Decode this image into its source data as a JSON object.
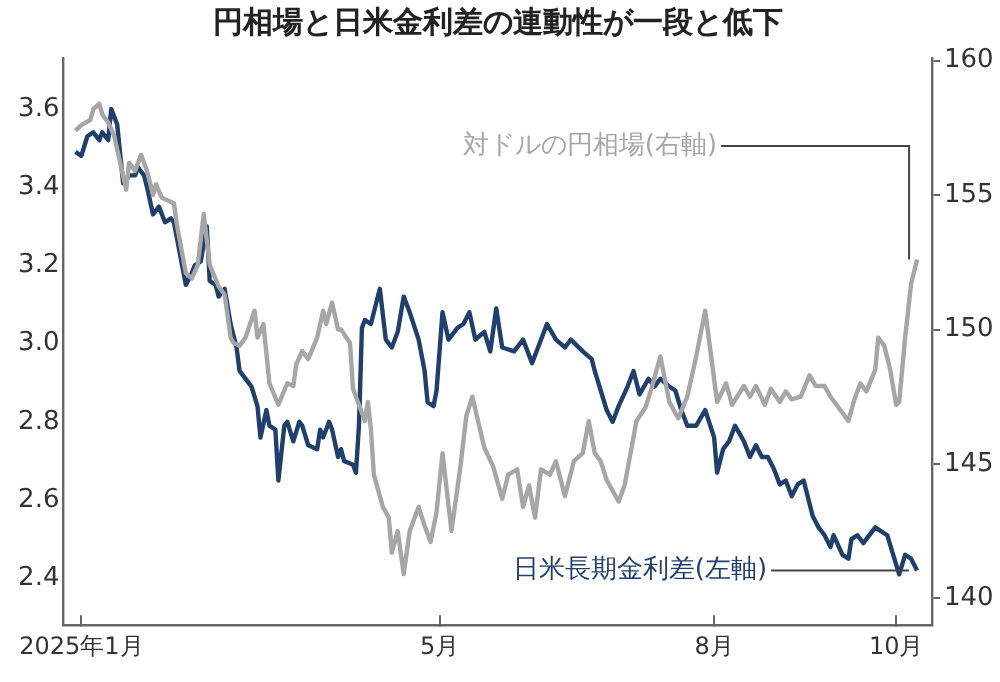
{
  "chart_data": {
    "type": "line",
    "title": "円相場と日米金利差の連動性が一段と低下",
    "xlim": [
      "2024-12-26",
      "2025-10-13"
    ],
    "xticks": [
      {
        "value": "2025-01-01",
        "label": "2025年1月"
      },
      {
        "value": "2025-05-01",
        "label": "5月"
      },
      {
        "value": "2025-08-01",
        "label": "8月"
      },
      {
        "value": "2025-10-01",
        "label": "10月"
      }
    ],
    "ylim": [
      2.28,
      3.73
    ],
    "yticks": [
      2.4,
      2.6,
      2.8,
      {
        "value": 3.0,
        "label": "3.0"
      },
      3.2,
      3.4,
      3.6
    ],
    "y2lim": [
      139,
      160.1
    ],
    "y2ticks": [
      140,
      145,
      150,
      155,
      160
    ],
    "series": [
      {
        "name": "対ドルの円相場(右軸)",
        "color": "#a6a6a6",
        "axis": "y2",
        "x": [
          "2024-12-30",
          "2025-01-01",
          "2025-01-04",
          "2025-01-05",
          "2025-01-07",
          "2025-01-08",
          "2025-01-10",
          "2025-01-12",
          "2025-01-14",
          "2025-01-16",
          "2025-01-17",
          "2025-01-19",
          "2025-01-21",
          "2025-01-23",
          "2025-01-25",
          "2025-01-26",
          "2025-01-28",
          "2025-01-30",
          "2025-02-01",
          "2025-02-02",
          "2025-02-05",
          "2025-02-07",
          "2025-02-09",
          "2025-02-11",
          "2025-02-13",
          "2025-02-16",
          "2025-02-18",
          "2025-02-20",
          "2025-02-21",
          "2025-02-23",
          "2025-02-25",
          "2025-02-28",
          "2025-03-01",
          "2025-03-03",
          "2025-03-05",
          "2025-03-08",
          "2025-03-11",
          "2025-03-13",
          "2025-03-14",
          "2025-03-16",
          "2025-03-18",
          "2025-03-21",
          "2025-03-23",
          "2025-03-24",
          "2025-03-26",
          "2025-03-28",
          "2025-03-29",
          "2025-04-01",
          "2025-04-02",
          "2025-04-06",
          "2025-04-07",
          "2025-04-08",
          "2025-04-09",
          "2025-04-12",
          "2025-04-14",
          "2025-04-15",
          "2025-04-17",
          "2025-04-19",
          "2025-04-21",
          "2025-04-24",
          "2025-04-26",
          "2025-04-28",
          "2025-04-30",
          "2025-05-02",
          "2025-05-05",
          "2025-05-08",
          "2025-05-10",
          "2025-05-12",
          "2025-05-16",
          "2025-05-19",
          "2025-05-22",
          "2025-05-24",
          "2025-05-27",
          "2025-05-29",
          "2025-05-31",
          "2025-06-02",
          "2025-06-04",
          "2025-06-07",
          "2025-06-09",
          "2025-06-12",
          "2025-06-15",
          "2025-06-18",
          "2025-06-20",
          "2025-06-22",
          "2025-06-24",
          "2025-06-26",
          "2025-06-30",
          "2025-07-02",
          "2025-07-04",
          "2025-07-06",
          "2025-07-09",
          "2025-07-11",
          "2025-07-14",
          "2025-07-17",
          "2025-07-20",
          "2025-07-23",
          "2025-07-26",
          "2025-07-29",
          "2025-07-31",
          "2025-08-02",
          "2025-08-05",
          "2025-08-07",
          "2025-08-11",
          "2025-08-13",
          "2025-08-15",
          "2025-08-18",
          "2025-08-20",
          "2025-08-23",
          "2025-08-25",
          "2025-08-27",
          "2025-08-30",
          "2025-09-02",
          "2025-09-04",
          "2025-09-07",
          "2025-09-09",
          "2025-09-11",
          "2025-09-15",
          "2025-09-17",
          "2025-09-19",
          "2025-09-21",
          "2025-09-24",
          "2025-09-25",
          "2025-09-27",
          "2025-09-29",
          "2025-10-01",
          "2025-10-02",
          "2025-10-04",
          "2025-10-06",
          "2025-10-08"
        ],
        "values": [
          157.4,
          157.6,
          157.8,
          158.2,
          158.4,
          158.0,
          157.7,
          157.2,
          156.2,
          155.2,
          156.2,
          155.9,
          156.5,
          155.9,
          155.0,
          155.4,
          154.9,
          154.8,
          154.7,
          153.9,
          152.1,
          151.9,
          152.4,
          154.3,
          152.4,
          151.6,
          151.3,
          149.7,
          149.5,
          149.4,
          149.7,
          150.7,
          149.7,
          150.2,
          148.0,
          147.2,
          148.0,
          147.9,
          148.7,
          149.2,
          148.9,
          149.7,
          150.7,
          150.2,
          151.0,
          150.0,
          150.0,
          149.5,
          147.8,
          146.6,
          147.3,
          146.3,
          144.6,
          143.4,
          143.0,
          141.7,
          142.5,
          140.9,
          142.5,
          143.4,
          142.7,
          142.1,
          143.2,
          145.4,
          142.5,
          144.9,
          146.8,
          147.5,
          145.6,
          144.9,
          143.7,
          144.6,
          144.8,
          143.4,
          144.2,
          143.0,
          144.8,
          144.6,
          145.1,
          143.8,
          145.1,
          145.4,
          146.6,
          145.4,
          145.1,
          144.4,
          143.6,
          144.2,
          145.4,
          146.6,
          147.1,
          147.8,
          149.0,
          147.3,
          146.7,
          147.5,
          149.0,
          150.7,
          149.0,
          147.3,
          148.0,
          147.2,
          147.9,
          147.5,
          147.9,
          147.2,
          147.8,
          147.3,
          147.7,
          147.4,
          147.5,
          148.3,
          147.9,
          147.9,
          147.5,
          147.2,
          146.6,
          147.4,
          148.0,
          147.7,
          148.5,
          149.7,
          149.4,
          148.5,
          147.2,
          147.3,
          149.7,
          151.7,
          152.6
        ]
      },
      {
        "name": "日米長期金利差(左軸)",
        "color": "#1f3f6e",
        "x": [
          "2024-12-30",
          "2025-01-01",
          "2025-01-03",
          "2025-01-05",
          "2025-01-07",
          "2025-01-08",
          "2025-01-10",
          "2025-01-11",
          "2025-01-13",
          "2025-01-15",
          "2025-01-17",
          "2025-01-19",
          "2025-01-20",
          "2025-01-22",
          "2025-01-23",
          "2025-01-25",
          "2025-01-27",
          "2025-01-29",
          "2025-01-31",
          "2025-02-01",
          "2025-02-02",
          "2025-02-05",
          "2025-02-07",
          "2025-02-08",
          "2025-02-10",
          "2025-02-12",
          "2025-02-13",
          "2025-02-15",
          "2025-02-16",
          "2025-02-18",
          "2025-02-20",
          "2025-02-22",
          "2025-02-23",
          "2025-02-27",
          "2025-03-01",
          "2025-03-02",
          "2025-03-04",
          "2025-03-05",
          "2025-03-07",
          "2025-03-08",
          "2025-03-10",
          "2025-03-11",
          "2025-03-13",
          "2025-03-15",
          "2025-03-16",
          "2025-03-18",
          "2025-03-21",
          "2025-03-22",
          "2025-03-23",
          "2025-03-25",
          "2025-03-26",
          "2025-03-28",
          "2025-03-29",
          "2025-03-30",
          "2025-04-02",
          "2025-04-03",
          "2025-04-04",
          "2025-04-05",
          "2025-04-06",
          "2025-04-08",
          "2025-04-09",
          "2025-04-11",
          "2025-04-13",
          "2025-04-15",
          "2025-04-17",
          "2025-04-19",
          "2025-04-21",
          "2025-04-24",
          "2025-04-26",
          "2025-04-27",
          "2025-04-29",
          "2025-04-30",
          "2025-05-02",
          "2025-05-04",
          "2025-05-07",
          "2025-05-09",
          "2025-05-11",
          "2025-05-13",
          "2025-05-16",
          "2025-05-18",
          "2025-05-20",
          "2025-05-22",
          "2025-05-26",
          "2025-05-29",
          "2025-06-01",
          "2025-06-03",
          "2025-06-06",
          "2025-06-09",
          "2025-06-12",
          "2025-06-14",
          "2025-06-18",
          "2025-06-21",
          "2025-06-22",
          "2025-06-24",
          "2025-06-26",
          "2025-06-28",
          "2025-06-30",
          "2025-07-03",
          "2025-07-05",
          "2025-07-07",
          "2025-07-10",
          "2025-07-12",
          "2025-07-14",
          "2025-07-17",
          "2025-07-19",
          "2025-07-21",
          "2025-07-23",
          "2025-07-26",
          "2025-07-29",
          "2025-08-01",
          "2025-08-02",
          "2025-08-04",
          "2025-08-06",
          "2025-08-08",
          "2025-08-11",
          "2025-08-13",
          "2025-08-15",
          "2025-08-17",
          "2025-08-19",
          "2025-08-21",
          "2025-08-23",
          "2025-08-25",
          "2025-08-27",
          "2025-08-29",
          "2025-08-31",
          "2025-09-03",
          "2025-09-05",
          "2025-09-07",
          "2025-09-09",
          "2025-09-10",
          "2025-09-13",
          "2025-09-15",
          "2025-09-16",
          "2025-09-18",
          "2025-09-20",
          "2025-09-21",
          "2025-09-24",
          "2025-09-26",
          "2025-09-28",
          "2025-09-30",
          "2025-10-02",
          "2025-10-04",
          "2025-10-06",
          "2025-10-08"
        ],
        "values": [
          3.49,
          3.48,
          3.53,
          3.54,
          3.52,
          3.54,
          3.52,
          3.6,
          3.56,
          3.41,
          3.43,
          3.43,
          3.45,
          3.43,
          3.4,
          3.33,
          3.35,
          3.31,
          3.32,
          3.31,
          3.27,
          3.15,
          3.18,
          3.2,
          3.21,
          3.3,
          3.16,
          3.15,
          3.12,
          3.14,
          3.05,
          2.99,
          2.93,
          2.89,
          2.84,
          2.76,
          2.83,
          2.79,
          2.78,
          2.65,
          2.79,
          2.8,
          2.75,
          2.8,
          2.79,
          2.74,
          2.73,
          2.78,
          2.76,
          2.8,
          2.78,
          2.71,
          2.73,
          2.7,
          2.69,
          2.67,
          2.79,
          3.04,
          3.06,
          3.05,
          3.08,
          3.14,
          3.01,
          2.99,
          3.03,
          3.12,
          3.08,
          3.01,
          2.93,
          2.85,
          2.84,
          2.88,
          3.08,
          3.01,
          3.04,
          3.05,
          3.08,
          3.01,
          3.03,
          2.98,
          3.09,
          2.99,
          2.98,
          3.01,
          2.95,
          2.99,
          3.05,
          3.01,
          2.99,
          3.01,
          2.98,
          2.96,
          2.93,
          2.88,
          2.83,
          2.8,
          2.84,
          2.89,
          2.93,
          2.87,
          2.91,
          2.89,
          2.91,
          2.89,
          2.88,
          2.83,
          2.79,
          2.79,
          2.83,
          2.76,
          2.67,
          2.73,
          2.75,
          2.79,
          2.75,
          2.71,
          2.74,
          2.71,
          2.71,
          2.68,
          2.64,
          2.65,
          2.61,
          2.64,
          2.65,
          2.56,
          2.53,
          2.51,
          2.48,
          2.51,
          2.46,
          2.45,
          2.5,
          2.51,
          2.49,
          2.5,
          2.53,
          2.52,
          2.51,
          2.46,
          2.41,
          2.46,
          2.45,
          2.42
        ]
      }
    ]
  }
}
